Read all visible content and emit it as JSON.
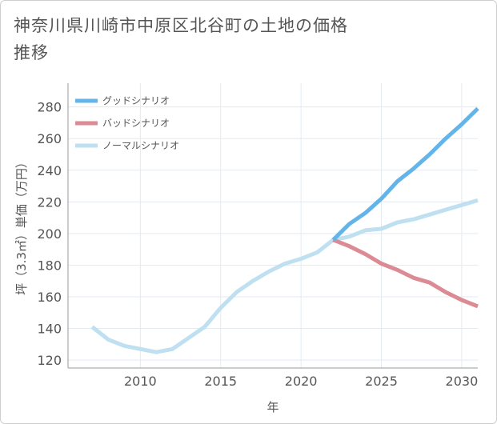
{
  "chart_data": {
    "type": "line",
    "title": "神奈川県川崎市中原区北谷町の土地の価格推移",
    "xlabel": "年",
    "ylabel": "坪（3.3㎡）単価（万円）",
    "xlim": [
      2005.5,
      2031
    ],
    "ylim": [
      115,
      295
    ],
    "xticks": [
      2010,
      2015,
      2020,
      2025,
      2030
    ],
    "yticks": [
      120,
      140,
      160,
      180,
      200,
      220,
      240,
      260,
      280
    ],
    "grid": true,
    "legend_position": "top-left",
    "series": [
      {
        "name": "グッドシナリオ",
        "color": "#63b4e8",
        "x": [
          2022,
          2023,
          2024,
          2025,
          2026,
          2027,
          2028,
          2029,
          2030,
          2031
        ],
        "y": [
          196,
          206,
          213,
          222,
          233,
          241,
          250,
          260,
          269,
          279
        ]
      },
      {
        "name": "バッドシナリオ",
        "color": "#dc8a94",
        "x": [
          2022,
          2023,
          2024,
          2025,
          2026,
          2027,
          2028,
          2029,
          2030,
          2031
        ],
        "y": [
          196,
          192,
          187,
          181,
          177,
          172,
          169,
          163,
          158,
          154
        ]
      },
      {
        "name": "ノーマルシナリオ",
        "color": "#bfe0f0",
        "x": [
          2007,
          2008,
          2009,
          2010,
          2011,
          2012,
          2013,
          2014,
          2015,
          2016,
          2017,
          2018,
          2019,
          2020,
          2021,
          2022,
          2023,
          2024,
          2025,
          2026,
          2027,
          2028,
          2029,
          2030,
          2031
        ],
        "y": [
          141,
          133,
          129,
          127,
          125,
          127,
          134,
          141,
          153,
          163,
          170,
          176,
          181,
          184,
          188,
          196,
          198,
          202,
          203,
          207,
          209,
          212,
          215,
          218,
          221
        ]
      }
    ]
  }
}
